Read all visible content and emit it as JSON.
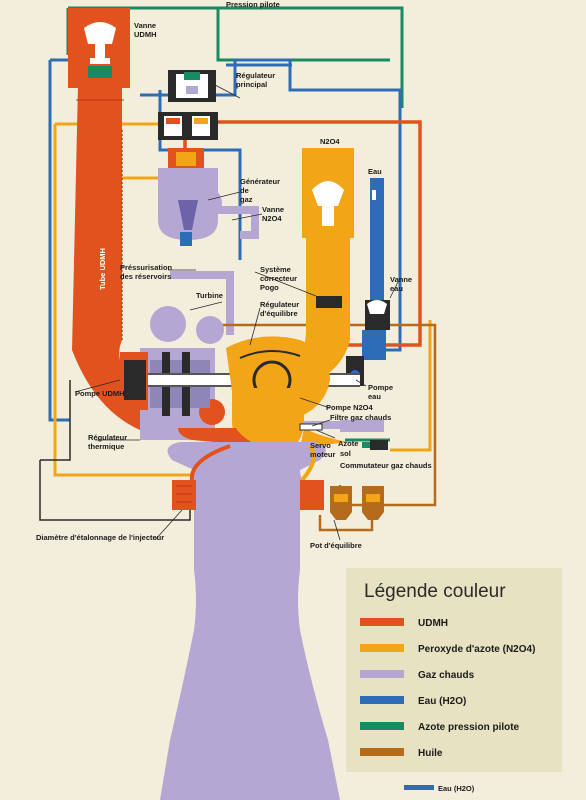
{
  "colors": {
    "udmh": "#e2521e",
    "n2o4": "#f2a516",
    "gas": "#b5a7d3",
    "water": "#2c6db6",
    "nitrogen": "#1a8a62",
    "oil": "#b66a1c",
    "background": "#f3eedb",
    "legend_bg": "#e6e2c2"
  },
  "labels": {
    "pression_pilote": "Pression pilote",
    "vanne_udmh": [
      "Vanne",
      "UDMH"
    ],
    "regulateur_principal": [
      "Régulateur",
      "principal"
    ],
    "n2o4_top": "N2O4",
    "eau_top": "Eau",
    "generateur_gaz": [
      "Générateur",
      "de",
      "gaz"
    ],
    "vanne_n2o4": [
      "Vanne",
      "N2O4"
    ],
    "tube_udmh": "Tube UDMH",
    "pressurisation": [
      "Préssurisation",
      "des réservoirs"
    ],
    "systeme_correcteur": [
      "Système",
      "correcteur",
      "Pogo"
    ],
    "vanne_eau": [
      "Vanne",
      "eau"
    ],
    "turbine": "Turbine",
    "regulateur_equilibre": [
      "Régulateur",
      "d'équilibre"
    ],
    "pompe_eau": [
      "Pompe",
      "eau"
    ],
    "pompe_udmh": "Pompe UDMH",
    "pompe_n2o4": "Pompe N2O4",
    "filtre_gaz": "Filtre gaz chauds",
    "regulateur_thermique": [
      "Régulateur",
      "thermique"
    ],
    "servo_moteur": [
      "Servo",
      "moteur"
    ],
    "azote_sol": [
      "Azote",
      "sol"
    ],
    "commutateur": "Commutateur gaz chauds",
    "diametre": "Diamètre d'étalonnage de l'injecteur",
    "pot_equilibre": "Pot d'équilibre",
    "eau_bottom": "Eau (H2O)"
  },
  "legend": {
    "title": "Légende couleur",
    "items": [
      {
        "label": "UDMH",
        "color": "#e2521e"
      },
      {
        "label": "Peroxyde d'azote (N2O4)",
        "color": "#f2a516"
      },
      {
        "label": "Gaz chauds",
        "color": "#b5a7d3"
      },
      {
        "label": "Eau (H2O)",
        "color": "#2c6db6"
      },
      {
        "label": "Azote pression pilote",
        "color": "#1a8a62"
      },
      {
        "label": "Huile",
        "color": "#b66a1c"
      }
    ]
  }
}
